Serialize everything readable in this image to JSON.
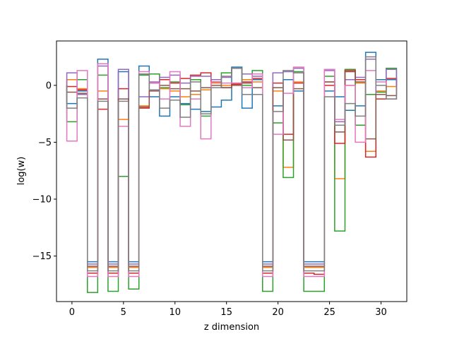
{
  "chart_data": {
    "type": "line",
    "style": "step-histogram",
    "xlabel": "z dimension",
    "ylabel": "log(w)",
    "xlim": [
      -1.5,
      32.5
    ],
    "ylim": [
      -19.0,
      3.9
    ],
    "x_ticks": [
      0,
      5,
      10,
      15,
      20,
      25,
      30
    ],
    "y_ticks": [
      -15,
      -10,
      -5,
      0
    ],
    "grid": false,
    "legend": "none",
    "bin_width": 1,
    "series": [
      {
        "color": "#1f77b4",
        "values": [
          -1.6,
          -0.5,
          -15.5,
          2.3,
          -15.5,
          1.2,
          -15.5,
          1.7,
          -1.0,
          -2.7,
          -1.0,
          -1.6,
          -2.1,
          -2.3,
          -1.9,
          -1.3,
          1.6,
          -2.0,
          0.5,
          -15.5,
          -1.8,
          0.5,
          -0.5,
          -15.5,
          -15.5,
          -0.5,
          -1.0,
          -2.2,
          -1.8,
          2.9,
          0.5,
          0.5
        ]
      },
      {
        "color": "#ff7f0e",
        "values": [
          0.5,
          -0.3,
          -16.0,
          -0.5,
          -16.0,
          -3.0,
          -16.0,
          -1.8,
          0.2,
          -0.3,
          -0.5,
          -1.0,
          -0.8,
          -0.4,
          0.2,
          0.0,
          0.2,
          0.5,
          0.3,
          -16.0,
          -0.5,
          -7.2,
          0.3,
          -16.0,
          -16.0,
          0.3,
          -8.2,
          0.0,
          0.2,
          -5.8,
          -0.5,
          -0.1
        ]
      },
      {
        "color": "#2ca02c",
        "values": [
          -3.2,
          0.5,
          -18.2,
          0.9,
          -18.1,
          -8.0,
          -17.9,
          0.9,
          1.0,
          -0.2,
          0.3,
          -1.7,
          0.5,
          -2.7,
          0.3,
          1.1,
          1.5,
          0.0,
          1.3,
          -18.1,
          -3.3,
          -8.1,
          1.2,
          -18.1,
          -18.1,
          0.8,
          -12.8,
          1.4,
          -3.5,
          -0.8,
          -0.6,
          1.5
        ]
      },
      {
        "color": "#d62728",
        "values": [
          -0.1,
          -0.4,
          -16.5,
          -2.1,
          -16.5,
          -0.3,
          -16.5,
          -2.0,
          0.2,
          0.5,
          0.2,
          0.6,
          0.9,
          1.1,
          0.3,
          -0.2,
          0.1,
          0.3,
          0.6,
          -16.5,
          0.2,
          -4.3,
          0.2,
          -16.5,
          -16.6,
          0.0,
          -5.1,
          1.3,
          0.5,
          -6.3,
          -1.2,
          0.6
        ]
      },
      {
        "color": "#9467bd",
        "values": [
          1.1,
          -0.8,
          -15.7,
          1.7,
          -15.7,
          1.4,
          -15.7,
          -1.0,
          0.3,
          0.7,
          0.9,
          0.2,
          0.8,
          0.8,
          0.5,
          0.7,
          1.5,
          1.0,
          0.8,
          -15.7,
          1.1,
          1.2,
          1.5,
          -15.7,
          -15.7,
          1.3,
          -3.2,
          0.5,
          0.7,
          2.3,
          -0.8,
          1.4
        ]
      },
      {
        "color": "#8c564b",
        "values": [
          -0.6,
          -0.7,
          -15.9,
          -1.2,
          -15.9,
          -1.2,
          -15.9,
          -1.9,
          -0.5,
          0.0,
          -0.3,
          -0.3,
          -0.5,
          -0.2,
          0.0,
          -0.2,
          0.0,
          0.2,
          -0.2,
          -15.9,
          -0.2,
          -4.8,
          -0.3,
          -15.9,
          -15.9,
          0.3,
          -4.1,
          1.2,
          0.3,
          -4.7,
          -0.8,
          -0.9
        ]
      },
      {
        "color": "#e377c2",
        "values": [
          -4.9,
          1.3,
          -16.8,
          1.9,
          -16.8,
          -3.6,
          -16.8,
          1.2,
          0.2,
          -1.2,
          1.2,
          -3.6,
          -1.2,
          -4.7,
          0.3,
          0.2,
          0.2,
          -0.2,
          1.0,
          -16.8,
          -4.3,
          -0.7,
          1.6,
          -16.8,
          -16.8,
          1.4,
          -3.0,
          0.0,
          -5.0,
          1.3,
          0.3,
          -1.2
        ]
      },
      {
        "color": "#7f7f7f",
        "values": [
          -2.0,
          -1.1,
          -16.3,
          -1.4,
          -16.3,
          -1.4,
          -16.3,
          1.0,
          -0.4,
          -2.0,
          -1.3,
          -2.8,
          0.3,
          -2.5,
          -0.2,
          0.8,
          1.5,
          -0.8,
          -0.8,
          -16.3,
          -2.3,
          1.3,
          1.1,
          -16.3,
          -16.3,
          -1.0,
          -3.5,
          -1.6,
          -2.7,
          2.5,
          0.0,
          -1.2
        ]
      }
    ]
  }
}
